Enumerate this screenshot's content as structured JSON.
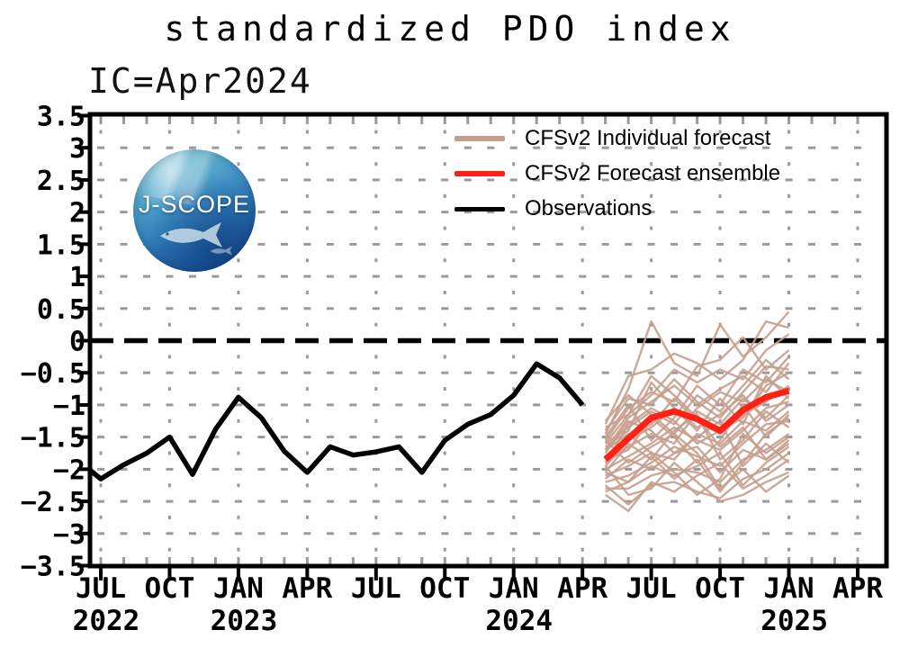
{
  "title": "standardized PDO index",
  "subtitle": "IC=Apr2024",
  "logo": {
    "text": "J-SCOPE"
  },
  "legend": [
    {
      "label": "CFSv2 Individual forecast",
      "color": "#c59e8d",
      "line_height": 6
    },
    {
      "label": "CFSv2 Forecast ensemble",
      "color": "#ff2116",
      "line_height": 6
    },
    {
      "label": "Observations",
      "color": "#000000",
      "line_height": 5
    }
  ],
  "chart_data": {
    "type": "line",
    "title": "standardized PDO index",
    "subtitle": "IC=Apr2024",
    "ylabel": "standardized PDO index",
    "ylim": [
      -3.5,
      3.5
    ],
    "grid": "dotted",
    "zero_line": "dashed-black",
    "y_tick_values": [
      3.5,
      3,
      2.5,
      2,
      1.5,
      1,
      0.5,
      0,
      -0.5,
      -1,
      -1.5,
      -2,
      -2.5,
      -3,
      -3.5
    ],
    "y_tick_labels": [
      "3.5",
      "3",
      "2.5",
      "2",
      "1.5",
      "1",
      "0.5",
      "0",
      "−0.5",
      "−1",
      "−1.5",
      "−2",
      "−2.5",
      "−3",
      "−3.5"
    ],
    "x_axis_note": "x in months, 0 = Jul 2022, major ticks every 3 months",
    "x_major_ticks": [
      {
        "m": 0,
        "label": "JUL"
      },
      {
        "m": 3,
        "label": "OCT"
      },
      {
        "m": 6,
        "label": "JAN"
      },
      {
        "m": 9,
        "label": "APR"
      },
      {
        "m": 12,
        "label": "JUL"
      },
      {
        "m": 15,
        "label": "OCT"
      },
      {
        "m": 18,
        "label": "JAN"
      },
      {
        "m": 21,
        "label": "APR"
      },
      {
        "m": 24,
        "label": "JUL"
      },
      {
        "m": 27,
        "label": "OCT"
      },
      {
        "m": 30,
        "label": "JAN"
      },
      {
        "m": 33,
        "label": "APR"
      }
    ],
    "x_year_labels": [
      {
        "m": 0,
        "label": "2022"
      },
      {
        "m": 6,
        "label": "2023"
      },
      {
        "m": 18,
        "label": "2024"
      },
      {
        "m": 30,
        "label": "2025"
      }
    ],
    "series": [
      {
        "name": "Observations",
        "color": "#000000",
        "width": 5.5,
        "x": [
          -0.45,
          0,
          1,
          2,
          3,
          4,
          5,
          6,
          7,
          8,
          9,
          10,
          11,
          12,
          13,
          14,
          15,
          16,
          17,
          18,
          19,
          20,
          21
        ],
        "values": [
          -2.02,
          -2.15,
          -1.93,
          -1.75,
          -1.5,
          -2.08,
          -1.38,
          -0.88,
          -1.2,
          -1.72,
          -2.05,
          -1.65,
          -1.78,
          -1.73,
          -1.65,
          -2.05,
          -1.55,
          -1.3,
          -1.15,
          -0.85,
          -0.36,
          -0.58,
          -1.0
        ]
      },
      {
        "name": "CFSv2 Forecast ensemble",
        "color": "#ff2116",
        "width": 7,
        "x": [
          22,
          23,
          24,
          25,
          26,
          27,
          28,
          29,
          30
        ],
        "values": [
          -1.85,
          -1.52,
          -1.2,
          -1.1,
          -1.22,
          -1.4,
          -1.08,
          -0.88,
          -0.78
        ]
      }
    ],
    "individual_forecasts": {
      "name": "CFSv2 Individual forecast",
      "color": "#c59e8d",
      "width": 2.4,
      "x": [
        22,
        23,
        24,
        25,
        26,
        27,
        28,
        29,
        30
      ],
      "traces": [
        [
          -1.45,
          -0.75,
          0.3,
          -0.35,
          -0.55,
          0.25,
          -0.25,
          0.05,
          0.45
        ],
        [
          -1.3,
          -0.55,
          -0.45,
          -0.2,
          -0.35,
          -0.6,
          -0.3,
          0.3,
          0.2
        ],
        [
          -1.55,
          -1.05,
          -0.8,
          -0.95,
          -0.4,
          -0.3,
          0.05,
          -0.45,
          -0.15
        ],
        [
          -1.7,
          -1.2,
          -0.95,
          -0.7,
          -1.0,
          -0.75,
          -0.55,
          -0.8,
          -0.35
        ],
        [
          -1.6,
          -1.35,
          -1.1,
          -1.3,
          -0.85,
          -1.1,
          -0.7,
          -0.3,
          -0.6
        ],
        [
          -1.8,
          -1.5,
          -1.3,
          -0.9,
          -1.25,
          -1.45,
          -1.15,
          -0.95,
          -0.7
        ],
        [
          -1.9,
          -1.65,
          -1.45,
          -1.6,
          -1.1,
          -1.3,
          -0.9,
          -1.2,
          -0.85
        ],
        [
          -2.0,
          -1.8,
          -1.6,
          -1.35,
          -1.55,
          -1.7,
          -1.4,
          -1.05,
          -0.95
        ],
        [
          -2.1,
          -1.95,
          -1.75,
          -1.85,
          -1.45,
          -1.6,
          -1.25,
          -1.4,
          -1.1
        ],
        [
          -2.2,
          -2.1,
          -1.9,
          -1.65,
          -1.8,
          -1.95,
          -1.6,
          -1.3,
          -1.25
        ],
        [
          -2.3,
          -2.3,
          -2.1,
          -2.0,
          -2.05,
          -2.2,
          -1.85,
          -1.7,
          -1.45
        ],
        [
          -2.25,
          -2.55,
          -2.25,
          -2.2,
          -2.35,
          -2.45,
          -2.15,
          -2.0,
          -1.75
        ],
        [
          -1.95,
          -2.4,
          -2.3,
          -1.9,
          -2.2,
          -2.5,
          -2.4,
          -2.2,
          -2.05
        ],
        [
          -1.5,
          -1.0,
          -1.55,
          -1.2,
          -0.7,
          -1.0,
          -0.45,
          -0.65,
          -0.25
        ],
        [
          -1.65,
          -1.4,
          -0.65,
          -1.05,
          -1.4,
          -0.9,
          -1.3,
          -0.55,
          -0.9
        ],
        [
          -1.85,
          -1.7,
          -1.2,
          -1.5,
          -1.9,
          -1.55,
          -1.0,
          -1.5,
          -1.15
        ],
        [
          -2.05,
          -1.6,
          -1.85,
          -1.4,
          -1.15,
          -1.85,
          -1.55,
          -1.1,
          -1.35
        ],
        [
          -1.4,
          -0.9,
          -1.0,
          -0.6,
          -0.95,
          -1.2,
          -0.8,
          -0.4,
          -0.45
        ],
        [
          -2.15,
          -1.85,
          -2.0,
          -1.75,
          -1.65,
          -2.05,
          -1.7,
          -1.85,
          -1.55
        ],
        [
          -1.75,
          -1.25,
          -1.4,
          -1.75,
          -1.5,
          -1.25,
          -1.95,
          -1.6,
          -1.9
        ],
        [
          -2.35,
          -2.2,
          -1.95,
          -2.1,
          -1.95,
          -1.75,
          -2.25,
          -1.9,
          -1.65
        ],
        [
          -1.55,
          -1.9,
          -1.65,
          -1.45,
          -1.75,
          -2.3,
          -2.0,
          -2.35,
          -2.1
        ],
        [
          -1.35,
          -1.15,
          -0.85,
          -0.45,
          -0.65,
          -0.45,
          -0.6,
          -0.15,
          0.1
        ],
        [
          -2.4,
          -2.65,
          -2.2,
          -2.35,
          -2.1,
          -1.9,
          -2.3,
          -2.1,
          -1.85
        ],
        [
          -1.7,
          -1.45,
          -1.75,
          -2.05,
          -2.4,
          -2.15,
          -1.45,
          -1.75,
          -1.5
        ],
        [
          -1.9,
          -1.3,
          -1.05,
          -1.25,
          -1.6,
          -1.4,
          -1.2,
          -0.7,
          -0.5
        ],
        [
          -1.6,
          -1.15,
          -0.55,
          -0.85,
          -1.2,
          -1.65,
          -1.35,
          -1.85,
          -1.6
        ],
        [
          -2.05,
          -2.2,
          -1.8,
          -2.15,
          -1.85,
          -2.35,
          -1.9,
          -1.45,
          -1.2
        ],
        [
          -1.25,
          -0.85,
          -1.15,
          -1.45,
          -1.05,
          -0.8,
          -0.95,
          -0.6,
          -0.8
        ],
        [
          -1.95,
          -1.55,
          -1.35,
          -1.05,
          -1.35,
          -1.15,
          -0.85,
          -1.25,
          -1.0
        ]
      ]
    }
  }
}
